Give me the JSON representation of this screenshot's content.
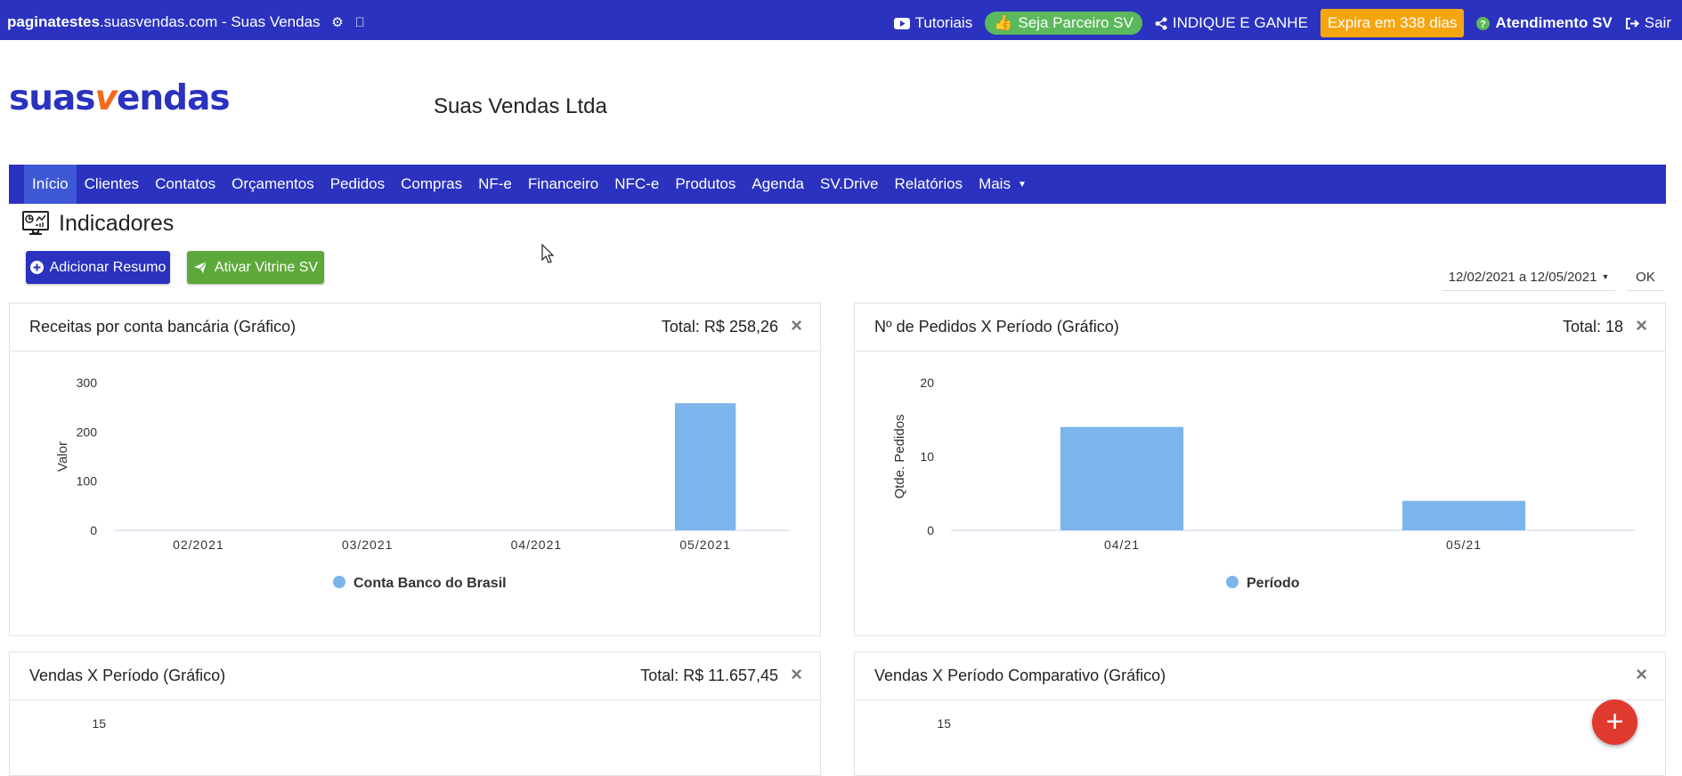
{
  "topbar": {
    "site_bold": "paginatestes",
    "site_rest": ".suasvendas.com",
    "site_suffix": " - Suas Vendas",
    "tutoriais": "Tutoriais",
    "parceiro": "Seja Parceiro SV",
    "indique": "INDIQUE E GANHE",
    "expira": "Expira em 338 dias",
    "atendimento": "Atendimento SV",
    "sair": "Sair"
  },
  "brand": {
    "logo_part1": "suas",
    "logo_v": "v",
    "logo_part2": "endas",
    "company": "Suas Vendas Ltda"
  },
  "nav": {
    "items": [
      "Início",
      "Clientes",
      "Contatos",
      "Orçamentos",
      "Pedidos",
      "Compras",
      "NF-e",
      "Financeiro",
      "NFC-e",
      "Produtos",
      "Agenda",
      "SV.Drive",
      "Relatórios",
      "Mais"
    ]
  },
  "page": {
    "title": "Indicadores",
    "add_button": "Adicionar Resumo",
    "vitrine_button": "Ativar Vitrine SV",
    "date_range": "12/02/2021 a 12/05/2021",
    "ok": "OK"
  },
  "cards": [
    {
      "title": "Receitas por conta bancária (Gráfico)",
      "total": "Total: R$ 258,26",
      "close": "×"
    },
    {
      "title": "Nº de Pedidos X Período (Gráfico)",
      "total": "Total: 18",
      "close": "×"
    },
    {
      "title": "Vendas X Período (Gráfico)",
      "total": "Total: R$ 11.657,45",
      "close": "×"
    },
    {
      "title": "Vendas X Período Comparativo (Gráfico)",
      "total": "",
      "close": "×"
    }
  ],
  "colors": {
    "primary": "#2a32bf",
    "bar": "#7cb5ec",
    "green": "#5da83a",
    "orange": "#f5a50f",
    "fab": "#e03a2f"
  },
  "chart_data": [
    {
      "type": "bar",
      "title": "Receitas por conta bancária (Gráfico)",
      "categories": [
        "02/2021",
        "03/2021",
        "04/2021",
        "05/2021"
      ],
      "series": [
        {
          "name": "Conta Banco do Brasil",
          "values": [
            0,
            0,
            0,
            258.26
          ]
        }
      ],
      "ylabel": "Valor",
      "ylim": [
        0,
        300
      ],
      "yticks": [
        0,
        100,
        200,
        300
      ],
      "legend": "bottom-center"
    },
    {
      "type": "bar",
      "title": "Nº de Pedidos X Período (Gráfico)",
      "categories": [
        "04/21",
        "05/21"
      ],
      "series": [
        {
          "name": "Período",
          "values": [
            14,
            4
          ]
        }
      ],
      "ylabel": "Qtde. Pedidos",
      "ylim": [
        0,
        20
      ],
      "yticks": [
        0,
        10,
        20
      ],
      "legend": "bottom-center"
    },
    {
      "type": "bar",
      "title": "Vendas X Período (Gráfico)",
      "yticks": [
        15
      ]
    },
    {
      "type": "bar",
      "title": "Vendas X Período Comparativo (Gráfico)",
      "yticks": [
        15
      ]
    }
  ]
}
